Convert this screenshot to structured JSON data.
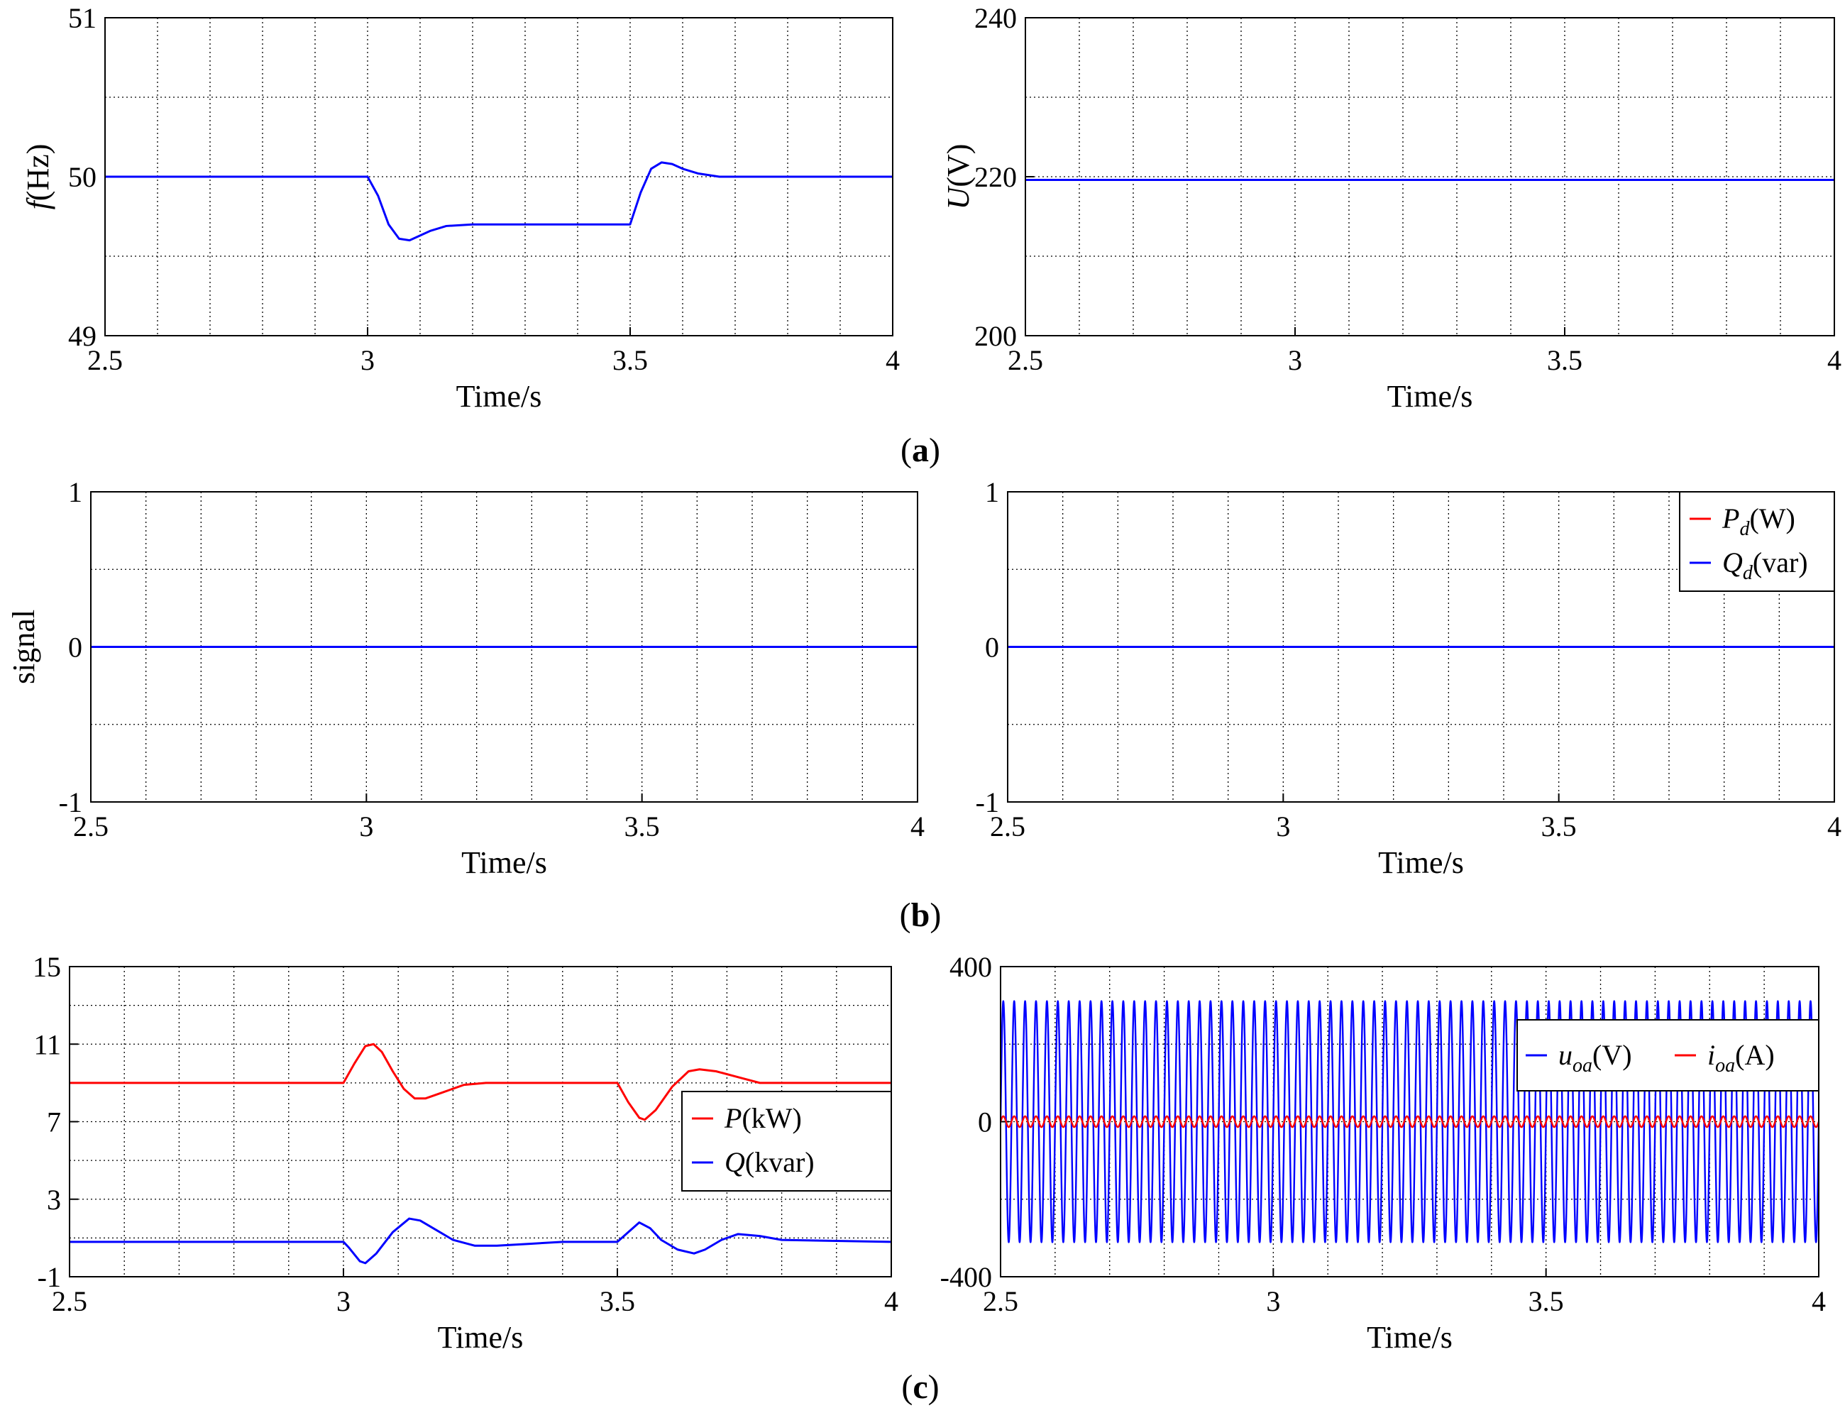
{
  "colors": {
    "blue": "#0000ff",
    "red": "#ff0000",
    "axis": "#000000"
  },
  "captions": {
    "a": "a",
    "b": "b",
    "c": "c"
  },
  "chart_data": [
    {
      "id": "a-left",
      "type": "line",
      "xlabel": "Time/s",
      "ylabel": {
        "italic": "f",
        "rest": "(Hz)"
      },
      "xlim": [
        2.5,
        4
      ],
      "ylim": [
        49,
        51
      ],
      "x_ticks": [
        "2.5",
        "3",
        "3.5",
        "4"
      ],
      "y_ticks": [
        "49",
        "50",
        "51"
      ],
      "legend": null,
      "series": [
        {
          "name": "f",
          "color": "blue",
          "x": [
            2.5,
            3.0,
            3.02,
            3.04,
            3.06,
            3.08,
            3.1,
            3.12,
            3.15,
            3.2,
            3.3,
            3.4,
            3.5,
            3.52,
            3.54,
            3.56,
            3.58,
            3.6,
            3.63,
            3.67,
            3.7,
            3.8,
            4.0
          ],
          "y": [
            50.0,
            50.0,
            49.88,
            49.7,
            49.61,
            49.6,
            49.63,
            49.66,
            49.69,
            49.7,
            49.7,
            49.7,
            49.7,
            49.9,
            50.05,
            50.09,
            50.08,
            50.05,
            50.02,
            50.0,
            50.0,
            50.0,
            50.0
          ]
        }
      ]
    },
    {
      "id": "a-right",
      "type": "line",
      "xlabel": "Time/s",
      "ylabel": {
        "italic": "U",
        "rest": "(V)"
      },
      "xlim": [
        2.5,
        4
      ],
      "ylim": [
        200,
        240
      ],
      "x_ticks": [
        "2.5",
        "3",
        "3.5",
        "4"
      ],
      "y_ticks": [
        "200",
        "220",
        "240"
      ],
      "legend": null,
      "series": [
        {
          "name": "U",
          "color": "blue",
          "x": [
            2.5,
            4.0
          ],
          "y": [
            219.6,
            219.6
          ]
        }
      ]
    },
    {
      "id": "b-left",
      "type": "line",
      "xlabel": "Time/s",
      "ylabel": {
        "italic": "",
        "rest": "signal"
      },
      "xlim": [
        2.5,
        4
      ],
      "ylim": [
        -1,
        1
      ],
      "x_ticks": [
        "2.5",
        "3",
        "3.5",
        "4"
      ],
      "y_ticks": [
        "-1",
        "0",
        "1"
      ],
      "legend": null,
      "series": [
        {
          "name": "signal",
          "color": "blue",
          "x": [
            2.5,
            4.0
          ],
          "y": [
            0,
            0
          ]
        }
      ]
    },
    {
      "id": "b-right",
      "type": "line",
      "xlabel": "Time/s",
      "ylabel": null,
      "xlim": [
        2.5,
        4
      ],
      "ylim": [
        -1,
        1
      ],
      "x_ticks": [
        "2.5",
        "3",
        "3.5",
        "4"
      ],
      "y_ticks": [
        "-1",
        "0",
        "1"
      ],
      "legend": {
        "placement": "top-right",
        "layout": "vertical"
      },
      "series": [
        {
          "name": "Pd",
          "label": {
            "main": "P",
            "sub": "d",
            "unit": "(W)"
          },
          "color": "red",
          "x": [
            2.5,
            4.0
          ],
          "y": [
            0,
            0
          ]
        },
        {
          "name": "Qd",
          "label": {
            "main": "Q",
            "sub": "d",
            "unit": "(var)"
          },
          "color": "blue",
          "x": [
            2.5,
            4.0
          ],
          "y": [
            0,
            0
          ]
        }
      ]
    },
    {
      "id": "c-left",
      "type": "line",
      "xlabel": "Time/s",
      "ylabel": null,
      "xlim": [
        2.5,
        4
      ],
      "ylim": [
        -1,
        15
      ],
      "x_ticks": [
        "2.5",
        "3",
        "3.5",
        "4"
      ],
      "y_ticks": [
        "-1",
        "3",
        "7",
        "11",
        "15"
      ],
      "legend": {
        "placement": "bottom-right",
        "layout": "vertical"
      },
      "series": [
        {
          "name": "P",
          "label": {
            "main": "P",
            "sub": "",
            "unit": "(kW)"
          },
          "color": "red",
          "x": [
            2.5,
            3.0,
            3.02,
            3.04,
            3.055,
            3.07,
            3.09,
            3.11,
            3.13,
            3.15,
            3.18,
            3.22,
            3.26,
            3.3,
            3.4,
            3.5,
            3.52,
            3.54,
            3.55,
            3.57,
            3.6,
            3.63,
            3.65,
            3.68,
            3.72,
            3.76,
            3.8,
            4.0
          ],
          "y": [
            9.0,
            9.0,
            10.0,
            10.9,
            11.0,
            10.6,
            9.6,
            8.7,
            8.2,
            8.2,
            8.5,
            8.9,
            9.0,
            9.0,
            9.0,
            9.0,
            8.0,
            7.2,
            7.1,
            7.6,
            8.8,
            9.6,
            9.7,
            9.6,
            9.3,
            9.0,
            9.0,
            9.0
          ]
        },
        {
          "name": "Q",
          "label": {
            "main": "Q",
            "sub": "",
            "unit": "(kvar)"
          },
          "color": "blue",
          "x": [
            2.5,
            3.0,
            3.01,
            3.03,
            3.04,
            3.06,
            3.09,
            3.12,
            3.14,
            3.17,
            3.2,
            3.24,
            3.28,
            3.34,
            3.4,
            3.5,
            3.52,
            3.54,
            3.56,
            3.58,
            3.61,
            3.64,
            3.66,
            3.69,
            3.72,
            3.76,
            3.8,
            4.0
          ],
          "y": [
            0.8,
            0.8,
            0.5,
            -0.2,
            -0.3,
            0.2,
            1.3,
            2.0,
            1.9,
            1.4,
            0.9,
            0.6,
            0.6,
            0.7,
            0.8,
            0.8,
            1.3,
            1.8,
            1.5,
            0.9,
            0.4,
            0.2,
            0.4,
            0.9,
            1.2,
            1.1,
            0.9,
            0.8
          ]
        }
      ]
    },
    {
      "id": "c-right",
      "type": "line",
      "xlabel": "Time/s",
      "ylabel": null,
      "xlim": [
        2.5,
        4
      ],
      "ylim": [
        -400,
        400
      ],
      "x_ticks": [
        "2.5",
        "3",
        "3.5",
        "4"
      ],
      "y_ticks": [
        "-400",
        "0",
        "400"
      ],
      "legend": {
        "placement": "top-right",
        "layout": "horizontal"
      },
      "series": [
        {
          "name": "uoa",
          "label": {
            "main": "u",
            "sub": "oa",
            "unit": "(V)"
          },
          "color": "blue",
          "waveform": {
            "type": "sine",
            "amplitude": 311,
            "frequency_hz": 50,
            "offset": 0
          }
        },
        {
          "name": "ioa",
          "label": {
            "main": "i",
            "sub": "oa",
            "unit": "(A)"
          },
          "color": "red",
          "waveform": {
            "type": "sine",
            "amplitude": 14,
            "frequency_hz": 50,
            "offset": 0
          }
        }
      ]
    }
  ]
}
